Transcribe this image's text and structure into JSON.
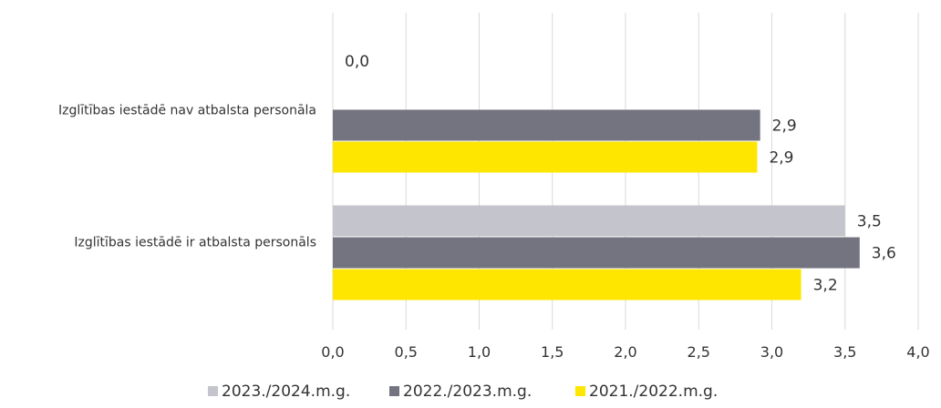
{
  "chart_data": {
    "type": "bar",
    "orientation": "horizontal",
    "categories": [
      "Izglītības iestādē nav atbalsta personāla",
      "Izglītības iestādē ir atbalsta personāls"
    ],
    "series": [
      {
        "name": "2023./2024.m.g.",
        "color": "#c4c4cd",
        "values": [
          0.0,
          3.5
        ],
        "labels": [
          "0,0",
          "3,5"
        ]
      },
      {
        "name": "2022./2023.m.g.",
        "color": "#747480",
        "values": [
          2.92,
          3.6
        ],
        "labels": [
          "2,9",
          "3,6"
        ]
      },
      {
        "name": "2021./2022.m.g.",
        "color": "#ffe600",
        "values": [
          2.9,
          3.2
        ],
        "labels": [
          "2,9",
          "3,2"
        ]
      }
    ],
    "xlim": [
      0,
      4
    ],
    "xticks": [
      0,
      0.5,
      1,
      1.5,
      2,
      2.5,
      3,
      3.5,
      4
    ],
    "xtick_labels": [
      "0,0",
      "0,5",
      "1,0",
      "1,5",
      "2,0",
      "2,5",
      "3,0",
      "3,5",
      "4,0"
    ],
    "grid": "vertical",
    "legend_position": "bottom",
    "title": "",
    "xlabel": "",
    "ylabel": ""
  }
}
